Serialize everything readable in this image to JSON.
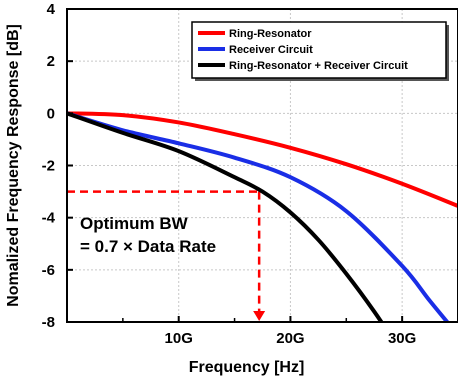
{
  "chart_data": {
    "type": "line",
    "title": "",
    "xlabel": "Frequency [Hz]",
    "ylabel": "Nomalized Frequency Response [dB]",
    "xlim": [
      0,
      35
    ],
    "ylim": [
      -8,
      4
    ],
    "x_unit": "GHz",
    "x_ticks": [
      10,
      20,
      30
    ],
    "x_tick_labels": [
      "10G",
      "20G",
      "30G"
    ],
    "y_ticks": [
      4,
      2,
      0,
      -2,
      -4,
      -6,
      -8
    ],
    "y_tick_labels": [
      "4",
      "2",
      "0",
      "-2",
      "-4",
      "-6",
      "-8"
    ],
    "grid": "dashed",
    "legend_position": "top-right",
    "series": [
      {
        "name": "Ring-Resonator",
        "color": "#ff0000",
        "x": [
          0,
          5,
          10,
          15,
          20,
          25,
          30,
          35
        ],
        "y": [
          0,
          -0.07,
          -0.35,
          -0.8,
          -1.32,
          -1.95,
          -2.7,
          -3.55
        ]
      },
      {
        "name": "Receiver Circuit",
        "color": "#1a2ee6",
        "x": [
          0,
          5,
          10,
          15,
          20,
          25,
          30,
          32.5,
          35
        ],
        "y": [
          0,
          -0.65,
          -1.15,
          -1.7,
          -2.45,
          -3.75,
          -5.85,
          -7.2,
          -8.5
        ]
      },
      {
        "name": "Ring-Resonator + Receiver Circuit",
        "color": "#000000",
        "x": [
          0,
          5,
          10,
          15,
          17.5,
          20,
          22.5,
          25,
          27.5,
          30
        ],
        "y": [
          0,
          -0.75,
          -1.45,
          -2.45,
          -3.0,
          -3.8,
          -4.85,
          -6.15,
          -7.6,
          -9.2
        ]
      }
    ],
    "annotation": {
      "lines": [
        "Optimum BW",
        "= 0.7 × Data Rate"
      ],
      "marker_x": 17.2,
      "marker_y": -3,
      "color": "#ff0000"
    }
  }
}
